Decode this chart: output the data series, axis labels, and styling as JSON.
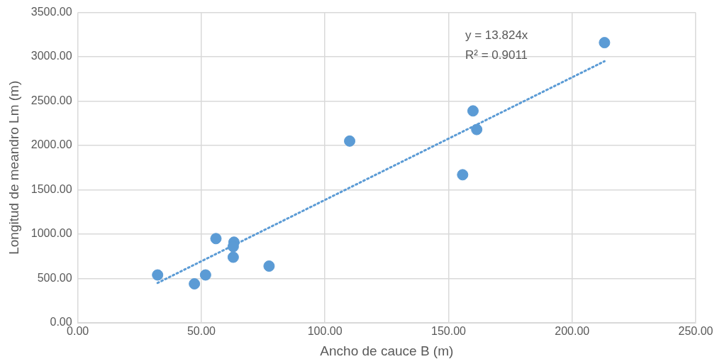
{
  "chart_data": {
    "type": "scatter",
    "xlabel": "Ancho de cauce B (m)",
    "ylabel": "Longitud de meandro Lm (m)",
    "xlim": [
      0,
      250
    ],
    "xticks": [
      {
        "value": 0,
        "label": "0.00"
      },
      {
        "value": 50,
        "label": "50.00"
      },
      {
        "value": 100,
        "label": "100.00"
      },
      {
        "value": 150,
        "label": "150.00"
      },
      {
        "value": 200,
        "label": "200.00"
      },
      {
        "value": 250,
        "label": "250.00"
      }
    ],
    "ylim": [
      0,
      3500
    ],
    "yticks": [
      {
        "value": 0,
        "label": "0.00"
      },
      {
        "value": 500,
        "label": "500.00"
      },
      {
        "value": 1000,
        "label": "1000.00"
      },
      {
        "value": 1500,
        "label": "1500.00"
      },
      {
        "value": 2000,
        "label": "2000.00"
      },
      {
        "value": 2500,
        "label": "2500.00"
      },
      {
        "value": 3000,
        "label": "3000.00"
      },
      {
        "value": 3500,
        "label": "3500.00"
      }
    ],
    "grid": true,
    "legend": false,
    "marker": "circle",
    "series": [
      {
        "type": "scatter",
        "color": "#5b9bd5",
        "x": [
          32.3,
          47.2,
          51.7,
          55.9,
          63.2,
          62.9,
          62.9,
          77.4,
          110.0,
          155.7,
          159.9,
          161.4,
          213.1
        ],
        "values": [
          540,
          440,
          540,
          950,
          910,
          860,
          740,
          640,
          2050,
          1670,
          2390,
          2180,
          3160
        ]
      },
      {
        "type": "line",
        "color": "#5b9bd5",
        "line_style": "dotted",
        "marker": "none",
        "x": [
          32.3,
          213.1
        ],
        "values": [
          450,
          2950
        ]
      }
    ],
    "annotations": [
      "y = 13.824x",
      "R² = 0.9011"
    ]
  }
}
